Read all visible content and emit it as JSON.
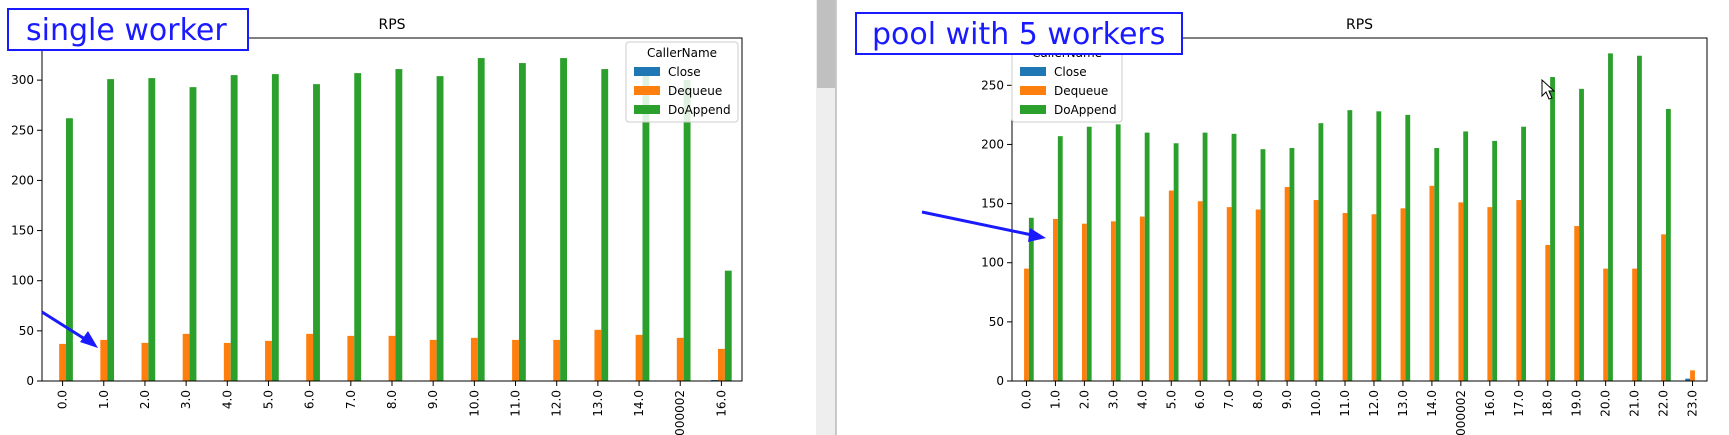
{
  "annotations": {
    "left_callout": "single worker",
    "right_callout": "pool with 5 workers"
  },
  "colors": {
    "Close": "#1f77b4",
    "Dequeue": "#ff7f0e",
    "DoAppend": "#2ca02c",
    "callout": "#1a1aff",
    "splitter": "#dcdcdc",
    "scroll_thumb": "#c0c0c0"
  },
  "chart_data": [
    {
      "type": "bar",
      "title": "RPS",
      "xlabel": "",
      "ylabel": "",
      "legend_title": "CallerName",
      "legend_position": "top-right",
      "grid": false,
      "ylim": [
        0,
        342
      ],
      "yticks": [
        0,
        50,
        100,
        150,
        200,
        250,
        300
      ],
      "categories": [
        "0.0",
        "1.0",
        "2.0",
        "3.0",
        "4.0",
        "5.0",
        "6.0",
        "7.0",
        "8.0",
        "9.0",
        "10.0",
        "11.0",
        "12.0",
        "13.0",
        "14.0",
        "000002",
        "16.0"
      ],
      "series": [
        {
          "name": "Close",
          "values": [
            0,
            0,
            0,
            0,
            0,
            0,
            0,
            0,
            0,
            0,
            0,
            0,
            0,
            0,
            0,
            0,
            1
          ]
        },
        {
          "name": "Dequeue",
          "values": [
            37,
            41,
            38,
            47,
            38,
            40,
            47,
            45,
            45,
            41,
            43,
            41,
            41,
            51,
            46,
            43,
            32
          ]
        },
        {
          "name": "DoAppend",
          "values": [
            262,
            301,
            302,
            293,
            305,
            306,
            296,
            307,
            311,
            304,
            322,
            317,
            322,
            311,
            307,
            300,
            110
          ]
        }
      ]
    },
    {
      "type": "bar",
      "title": "RPS",
      "xlabel": "",
      "ylabel": "",
      "legend_title": "CallerName",
      "legend_position": "top-left",
      "grid": false,
      "ylim": [
        0,
        290
      ],
      "yticks": [
        0,
        50,
        100,
        150,
        200,
        250
      ],
      "categories": [
        "0.0",
        "1.0",
        "2.0",
        "3.0",
        "4.0",
        "5.0",
        "6.0",
        "7.0",
        "8.0",
        "9.0",
        "10.0",
        "11.0",
        "12.0",
        "13.0",
        "14.0",
        "000002",
        "16.0",
        "17.0",
        "18.0",
        "19.0",
        "20.0",
        "21.0",
        "22.0",
        "23.0"
      ],
      "series": [
        {
          "name": "Close",
          "values": [
            0,
            0,
            0,
            0,
            0,
            0,
            0,
            0,
            0,
            0,
            0,
            0,
            0,
            0,
            0,
            0,
            0,
            0,
            0,
            0,
            0,
            0,
            0,
            2
          ]
        },
        {
          "name": "Dequeue",
          "values": [
            95,
            137,
            133,
            135,
            139,
            161,
            152,
            147,
            145,
            164,
            153,
            142,
            141,
            146,
            165,
            151,
            147,
            153,
            115,
            131,
            95,
            95,
            124,
            9
          ]
        },
        {
          "name": "DoAppend",
          "values": [
            138,
            207,
            215,
            217,
            210,
            201,
            210,
            209,
            196,
            197,
            218,
            229,
            228,
            225,
            197,
            211,
            203,
            215,
            257,
            247,
            277,
            275,
            230,
            0
          ]
        }
      ]
    }
  ]
}
